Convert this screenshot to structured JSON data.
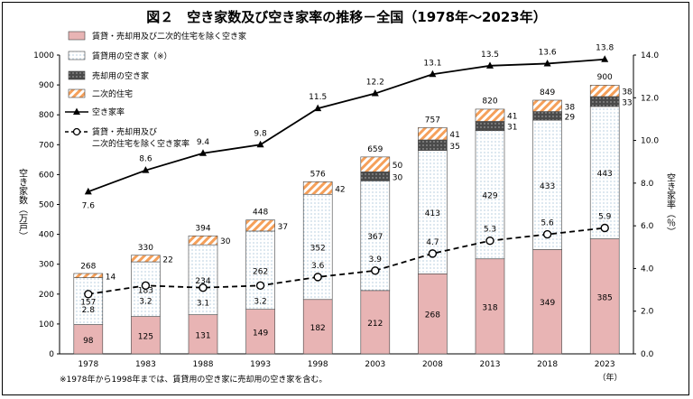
{
  "chart_data": {
    "type": "bar",
    "title": "図２　空き家数及び空き家率の推移－全国（1978年～2023年）",
    "categories": [
      "1978",
      "1983",
      "1988",
      "1993",
      "1998",
      "2003",
      "2008",
      "2013",
      "2018",
      "2023"
    ],
    "totals": [
      268,
      330,
      394,
      448,
      576,
      659,
      757,
      820,
      849,
      900
    ],
    "series": [
      {
        "name": "賃貸・売却用及び二次的住宅を除く空き家",
        "kind": "bar",
        "color": "#e8b4b4",
        "values": [
          98,
          125,
          131,
          149,
          182,
          212,
          268,
          318,
          349,
          385
        ]
      },
      {
        "name": "賃貸用の空き家（※）",
        "kind": "bar",
        "color": "#dde8f2",
        "values": [
          157,
          183,
          234,
          262,
          352,
          367,
          413,
          429,
          433,
          443
        ]
      },
      {
        "name": "売却用の空き家",
        "kind": "bar",
        "color": "#555555",
        "values": [
          null,
          null,
          null,
          null,
          null,
          30,
          35,
          31,
          29,
          33
        ]
      },
      {
        "name": "二次的住宅",
        "kind": "bar",
        "color": "#f5b27a",
        "values": [
          14,
          22,
          30,
          37,
          42,
          50,
          41,
          41,
          38,
          38
        ]
      },
      {
        "name": "空き家率",
        "kind": "line",
        "axis": "right",
        "values": [
          7.6,
          8.6,
          9.4,
          9.8,
          11.5,
          12.2,
          13.1,
          13.5,
          13.6,
          13.8
        ]
      },
      {
        "name": "賃貸・売却用及び\n二次的住宅を除く空き家率",
        "kind": "line",
        "axis": "right",
        "values": [
          2.8,
          3.2,
          3.1,
          3.2,
          3.6,
          3.9,
          4.7,
          5.3,
          5.6,
          5.9
        ]
      }
    ],
    "ylabel": "空き家数（万戸）",
    "ylabel_right": "空き家率（％）",
    "xlabel": "（年）",
    "ylim": [
      0,
      1000
    ],
    "yticks": [
      0,
      100,
      200,
      300,
      400,
      500,
      600,
      700,
      800,
      900,
      1000
    ],
    "ylim_right": [
      0,
      14
    ],
    "yticks_right": [
      "0.0",
      "2.0",
      "4.0",
      "6.0",
      "8.0",
      "10.0",
      "12.0",
      "14.0"
    ],
    "legend_position": "top-left",
    "footnote": "※1978年から1998年までは、賃貸用の空き家に売却用の空き家を含む。"
  }
}
